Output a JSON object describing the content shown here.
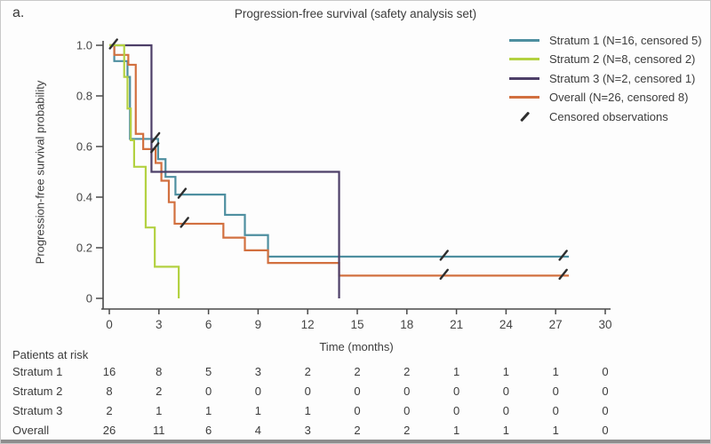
{
  "page": {
    "panel_label": "a."
  },
  "chart_data": {
    "type": "line",
    "variant": "kaplan-meier-step",
    "title": "Progression-free survival (safety analysis set)",
    "xlabel": "Time (months)",
    "ylabel": "Progression-free survival probability",
    "xlim": [
      0,
      30
    ],
    "ylim": [
      0,
      1.0
    ],
    "x_ticks": [
      0,
      3,
      6,
      9,
      12,
      15,
      18,
      21,
      24,
      27,
      30
    ],
    "y_ticks": [
      "1.0",
      "0.8",
      "0.6",
      "0.4",
      "0.2",
      "0"
    ],
    "grid": false,
    "legend_position": "top-right",
    "censored_legend_label": "Censored observations",
    "censor_color": "#2e2e2e",
    "series": [
      {
        "name": "Stratum 1 (N=16, censored 5)",
        "color": "#4E8FA0",
        "end_month": 27.8,
        "steps": [
          [
            0,
            1.0
          ],
          [
            0.3,
            0.9375
          ],
          [
            1.1,
            0.875
          ],
          [
            1.25,
            0.63
          ],
          [
            2.95,
            0.55
          ],
          [
            3.4,
            0.48
          ],
          [
            4.0,
            0.41
          ],
          [
            7.0,
            0.33
          ],
          [
            8.2,
            0.25
          ],
          [
            9.6,
            0.165
          ]
        ],
        "censor_marks": [
          [
            0.2,
            1.0
          ],
          [
            2.75,
            0.63
          ],
          [
            4.35,
            0.41
          ],
          [
            20.2,
            0.165
          ],
          [
            27.4,
            0.165
          ]
        ]
      },
      {
        "name": "Stratum 2 (N=8, censored 2)",
        "color": "#B3D141",
        "end_month": 4.2,
        "steps": [
          [
            0,
            1.0
          ],
          [
            0.9,
            0.875
          ],
          [
            1.1,
            0.75
          ],
          [
            1.3,
            0.625
          ],
          [
            1.5,
            0.52
          ],
          [
            2.2,
            0.28
          ],
          [
            2.75,
            0.125
          ],
          [
            4.2,
            0
          ]
        ],
        "censor_marks": []
      },
      {
        "name": "Stratum 3 (N=2, censored 1)",
        "color": "#4D3F68",
        "end_month": 13.9,
        "steps": [
          [
            0,
            1.0
          ],
          [
            2.55,
            0.5
          ],
          [
            13.9,
            0
          ]
        ],
        "censor_marks": []
      },
      {
        "name": "Overall (N=26, censored 8)",
        "color": "#D2703F",
        "end_month": 27.8,
        "steps": [
          [
            0,
            1.0
          ],
          [
            0.3,
            0.962
          ],
          [
            1.15,
            0.923
          ],
          [
            1.6,
            0.65
          ],
          [
            2.05,
            0.59
          ],
          [
            2.8,
            0.535
          ],
          [
            3.15,
            0.465
          ],
          [
            3.6,
            0.38
          ],
          [
            3.95,
            0.295
          ],
          [
            6.9,
            0.24
          ],
          [
            8.2,
            0.19
          ],
          [
            9.6,
            0.14
          ],
          [
            13.9,
            0.09
          ]
        ],
        "censor_marks": [
          [
            2.7,
            0.59
          ],
          [
            4.5,
            0.295
          ],
          [
            20.2,
            0.09
          ],
          [
            27.4,
            0.09
          ]
        ]
      }
    ]
  },
  "risk_table": {
    "title": "Patients at risk",
    "columns": [
      0,
      3,
      6,
      9,
      12,
      15,
      18,
      21,
      24,
      27,
      30
    ],
    "rows": [
      {
        "label": "Stratum 1",
        "counts": [
          16,
          8,
          5,
          3,
          2,
          2,
          2,
          1,
          1,
          1,
          0
        ]
      },
      {
        "label": "Stratum 2",
        "counts": [
          8,
          2,
          0,
          0,
          0,
          0,
          0,
          0,
          0,
          0,
          0
        ]
      },
      {
        "label": "Stratum 3",
        "counts": [
          2,
          1,
          1,
          1,
          1,
          0,
          0,
          0,
          0,
          0,
          0
        ]
      },
      {
        "label": "Overall",
        "counts": [
          26,
          11,
          6,
          4,
          3,
          2,
          2,
          1,
          1,
          1,
          0
        ]
      }
    ]
  }
}
